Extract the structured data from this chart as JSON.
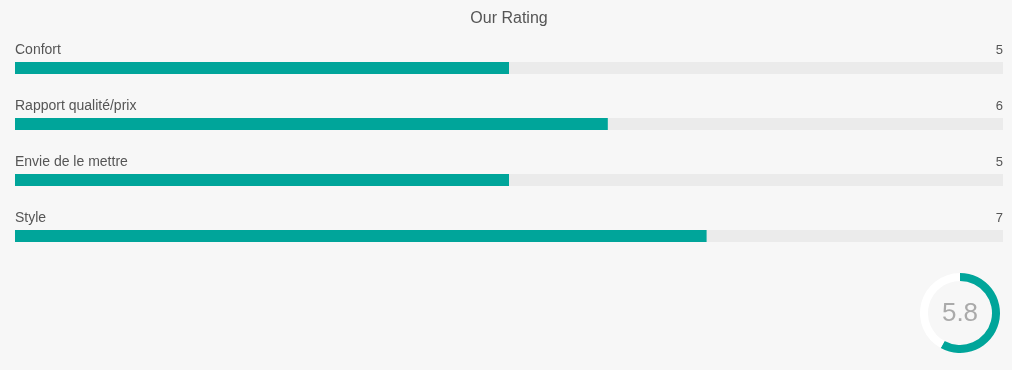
{
  "chart_data": [
    {
      "type": "bar",
      "title": "Our Rating",
      "orientation": "horizontal",
      "categories": [
        "Confort",
        "Rapport qualité/prix",
        "Envie de le mettre",
        "Style"
      ],
      "values": [
        5,
        6,
        5,
        7
      ],
      "color": "#00a59a",
      "xlim": [
        0,
        10
      ],
      "data_labels": true,
      "tick_labels": false
    },
    {
      "type": "donut",
      "categories": [
        null,
        null
      ],
      "values": [
        58,
        42
      ],
      "colors": [
        "#00a59a",
        "#ffffff"
      ],
      "annotations": [
        "5.8"
      ]
    }
  ]
}
